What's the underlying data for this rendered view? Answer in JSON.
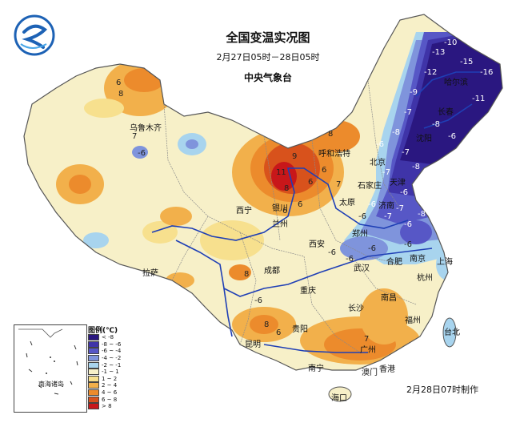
{
  "title": "全国变温实况图",
  "subtitle": "2月27日05时－28日05时",
  "organization": "中央气象台",
  "issue_time": "2月28日07时制作",
  "legend": {
    "title": "图例(℃)",
    "items": [
      {
        "label": "< -8",
        "color": "#2a1780"
      },
      {
        "label": "-8 ~ -6",
        "color": "#3f34a8"
      },
      {
        "label": "-6 ~ -4",
        "color": "#5757c6"
      },
      {
        "label": "-4 ~ -2",
        "color": "#7f94dc"
      },
      {
        "label": "-2 ~ -1",
        "color": "#a8d4ee"
      },
      {
        "label": "-1 ~ 1",
        "color": "#f7f0c8"
      },
      {
        "label": "1 ~ 2",
        "color": "#f7e08e"
      },
      {
        "label": "2 ~ 4",
        "color": "#f2b04b"
      },
      {
        "label": "4 ~ 6",
        "color": "#ec8b2c"
      },
      {
        "label": "6 ~ 8",
        "color": "#d8521c"
      },
      {
        "label": "> 8",
        "color": "#c8171a"
      }
    ]
  },
  "inset_label": "南海诸岛",
  "cities": {
    "harbin": "哈尔滨",
    "changchun": "长春",
    "shenyang": "沈阳",
    "beijing": "北京",
    "tianjin": "天津",
    "shijiazhuang": "石家庄",
    "jinan": "济南",
    "hohhot": "呼和浩特",
    "taiyuan": "太原",
    "zhengzhou": "郑州",
    "yinchuan": "银川",
    "lanzhou": "兰州",
    "xining": "西宁",
    "xian": "西安",
    "hefei": "合肥",
    "nanjing": "南京",
    "shanghai": "上海",
    "hangzhou": "杭州",
    "wuhan": "武汉",
    "chengdu": "成都",
    "chongqing": "重庆",
    "changsha": "长沙",
    "nanchang": "南昌",
    "fuzhou": "福州",
    "taipei": "台北",
    "guiyang": "贵阳",
    "kunming": "昆明",
    "nanning": "南宁",
    "guangzhou": "广州",
    "hongkong": "香港",
    "macau": "澳门",
    "haikou": "海口",
    "lhasa": "拉萨",
    "urumqi": "乌鲁木齐"
  },
  "values": [
    "-10",
    "-13",
    "-15",
    "-16",
    "-12",
    "-11",
    "-9",
    "-8",
    "-7",
    "-6",
    "-8",
    "-7",
    "-6",
    "-7",
    "-8",
    "-6",
    "-8",
    "-7",
    "-6",
    "-8",
    "-7",
    "-6",
    "9",
    "6",
    "8",
    "6",
    "11",
    "7",
    "8",
    "6",
    "6",
    "7",
    "6",
    "-6",
    "-6",
    "-6",
    "8",
    "-6",
    "-6",
    "-6",
    "-8",
    "-6",
    "8",
    "6",
    "7",
    "8"
  ],
  "colors": {
    "land_base": "#f7f0c8",
    "river": "#1f3fb5",
    "border": "#666666",
    "sea": "#ffffff"
  }
}
